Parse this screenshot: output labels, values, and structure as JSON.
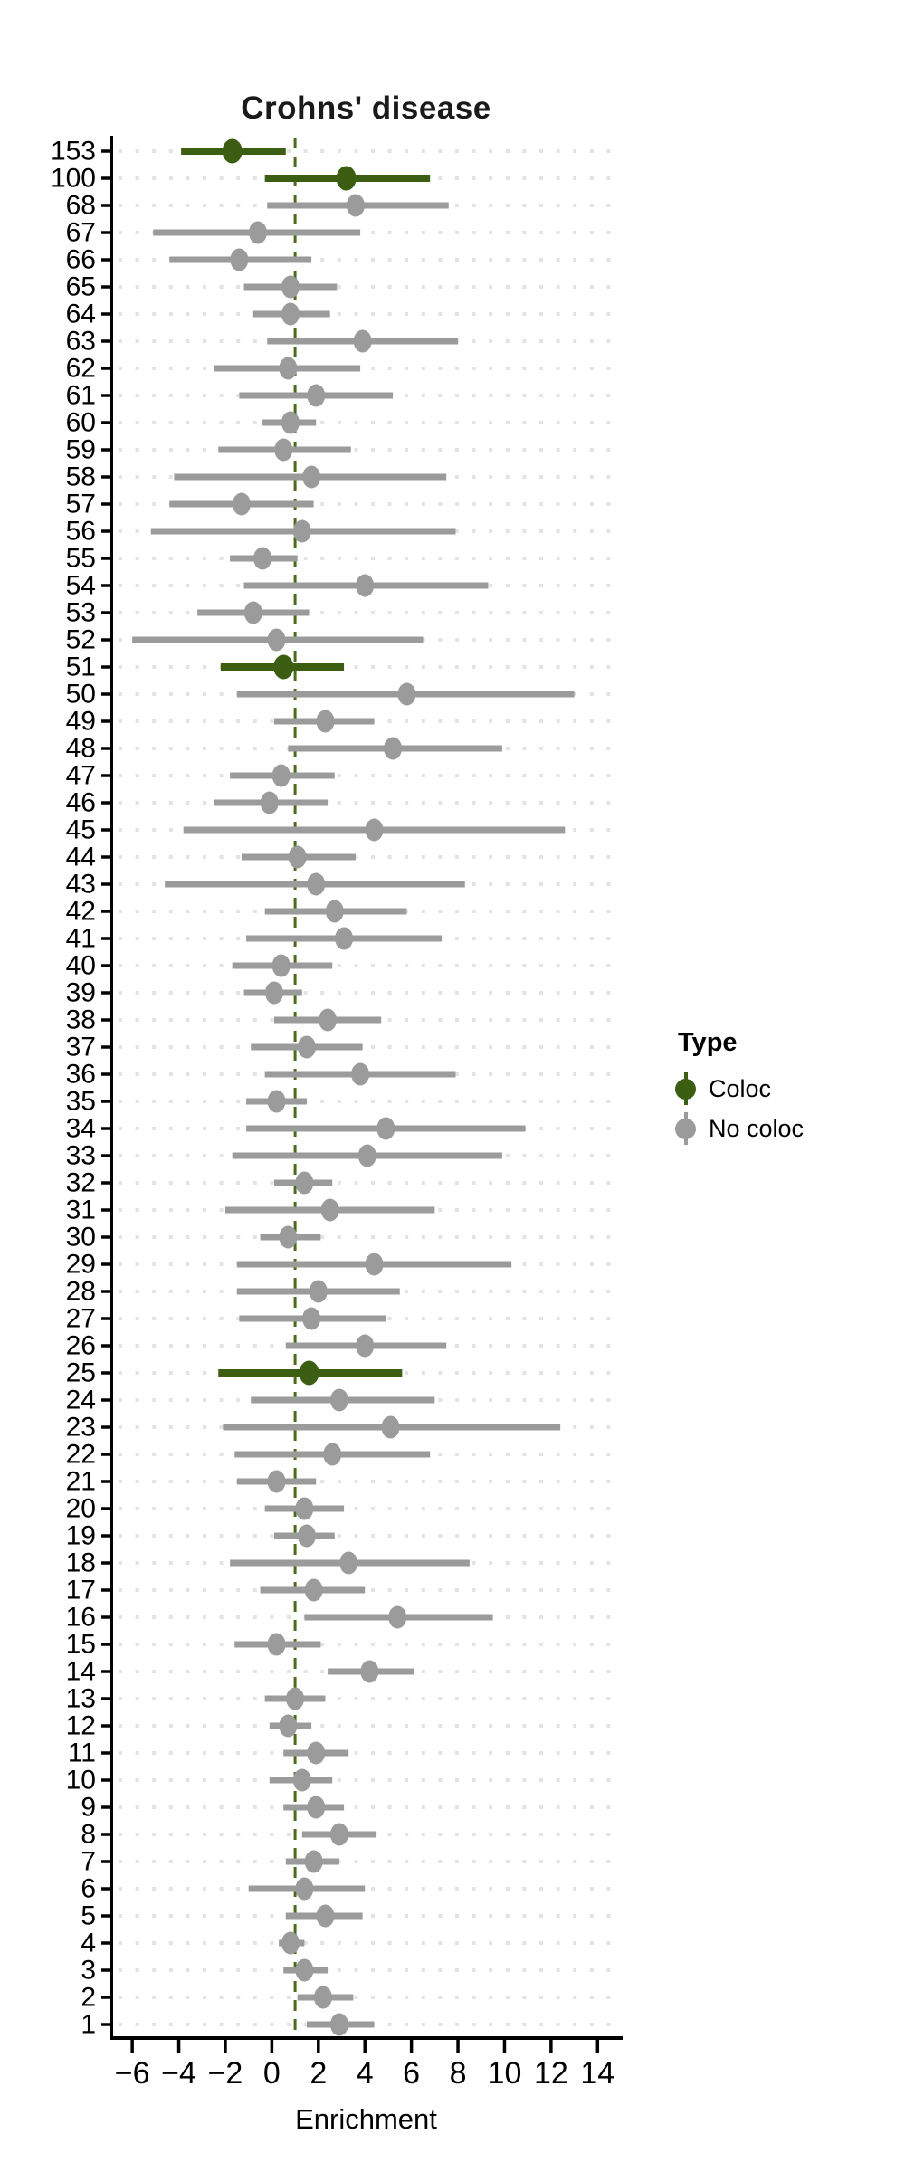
{
  "title": "Crohns' disease",
  "axes": {
    "xlabel": "Enrichment"
  },
  "legend": {
    "title": "Type",
    "items": [
      {
        "label": "Coloc",
        "color": "#3C5E13"
      },
      {
        "label": "No coloc",
        "color": "#9B9B9B"
      }
    ]
  },
  "colors": {
    "coloc": "#3C5E13",
    "no_coloc": "#9B9B9B",
    "refline": "#4A6C1B",
    "grid": "#E3E3E3",
    "axis": "#000000",
    "background": "#FFFFFF"
  },
  "chart_data": {
    "type": "scatter",
    "subtype": "horizontal-forest-pointrange",
    "title": "Crohns' disease",
    "xlabel": "Enrichment",
    "ylabel": "",
    "xlim": [
      -6.9,
      15.0
    ],
    "xticks": [
      -6,
      -4,
      -2,
      0,
      2,
      4,
      6,
      8,
      10,
      12,
      14
    ],
    "xtick_labels": [
      "−6",
      "−4",
      "−2",
      "0",
      "2",
      "4",
      "6",
      "8",
      "10",
      "12",
      "14"
    ],
    "refline_x": 1,
    "grid": "dotted-horizontal",
    "legend_position": "right",
    "rows": [
      {
        "label": "153",
        "est": -1.7,
        "lo": -3.9,
        "hi": 0.6,
        "type": "Coloc"
      },
      {
        "label": "100",
        "est": 3.2,
        "lo": -0.3,
        "hi": 6.8,
        "type": "Coloc"
      },
      {
        "label": "68",
        "est": 3.6,
        "lo": -0.2,
        "hi": 7.6,
        "type": "No coloc"
      },
      {
        "label": "67",
        "est": -0.6,
        "lo": -5.1,
        "hi": 3.8,
        "type": "No coloc"
      },
      {
        "label": "66",
        "est": -1.4,
        "lo": -4.4,
        "hi": 1.7,
        "type": "No coloc"
      },
      {
        "label": "65",
        "est": 0.8,
        "lo": -1.2,
        "hi": 2.8,
        "type": "No coloc"
      },
      {
        "label": "64",
        "est": 0.8,
        "lo": -0.8,
        "hi": 2.5,
        "type": "No coloc"
      },
      {
        "label": "63",
        "est": 3.9,
        "lo": -0.2,
        "hi": 8.0,
        "type": "No coloc"
      },
      {
        "label": "62",
        "est": 0.7,
        "lo": -2.5,
        "hi": 3.8,
        "type": "No coloc"
      },
      {
        "label": "61",
        "est": 1.9,
        "lo": -1.4,
        "hi": 5.2,
        "type": "No coloc"
      },
      {
        "label": "60",
        "est": 0.8,
        "lo": -0.4,
        "hi": 1.9,
        "type": "No coloc"
      },
      {
        "label": "59",
        "est": 0.5,
        "lo": -2.3,
        "hi": 3.4,
        "type": "No coloc"
      },
      {
        "label": "58",
        "est": 1.7,
        "lo": -4.2,
        "hi": 7.5,
        "type": "No coloc"
      },
      {
        "label": "57",
        "est": -1.3,
        "lo": -4.4,
        "hi": 1.8,
        "type": "No coloc"
      },
      {
        "label": "56",
        "est": 1.3,
        "lo": -5.2,
        "hi": 7.9,
        "type": "No coloc"
      },
      {
        "label": "55",
        "est": -0.4,
        "lo": -1.8,
        "hi": 1.1,
        "type": "No coloc"
      },
      {
        "label": "54",
        "est": 4.0,
        "lo": -1.2,
        "hi": 9.3,
        "type": "No coloc"
      },
      {
        "label": "53",
        "est": -0.8,
        "lo": -3.2,
        "hi": 1.6,
        "type": "No coloc"
      },
      {
        "label": "52",
        "est": 0.2,
        "lo": -6.0,
        "hi": 6.5,
        "type": "No coloc"
      },
      {
        "label": "51",
        "est": 0.5,
        "lo": -2.2,
        "hi": 3.1,
        "type": "Coloc"
      },
      {
        "label": "50",
        "est": 5.8,
        "lo": -1.5,
        "hi": 13.0,
        "type": "No coloc"
      },
      {
        "label": "49",
        "est": 2.3,
        "lo": 0.1,
        "hi": 4.4,
        "type": "No coloc"
      },
      {
        "label": "48",
        "est": 5.2,
        "lo": 0.7,
        "hi": 9.9,
        "type": "No coloc"
      },
      {
        "label": "47",
        "est": 0.4,
        "lo": -1.8,
        "hi": 2.7,
        "type": "No coloc"
      },
      {
        "label": "46",
        "est": -0.1,
        "lo": -2.5,
        "hi": 2.4,
        "type": "No coloc"
      },
      {
        "label": "45",
        "est": 4.4,
        "lo": -3.8,
        "hi": 12.6,
        "type": "No coloc"
      },
      {
        "label": "44",
        "est": 1.1,
        "lo": -1.3,
        "hi": 3.6,
        "type": "No coloc"
      },
      {
        "label": "43",
        "est": 1.9,
        "lo": -4.6,
        "hi": 8.3,
        "type": "No coloc"
      },
      {
        "label": "42",
        "est": 2.7,
        "lo": -0.3,
        "hi": 5.8,
        "type": "No coloc"
      },
      {
        "label": "41",
        "est": 3.1,
        "lo": -1.1,
        "hi": 7.3,
        "type": "No coloc"
      },
      {
        "label": "40",
        "est": 0.4,
        "lo": -1.7,
        "hi": 2.6,
        "type": "No coloc"
      },
      {
        "label": "39",
        "est": 0.1,
        "lo": -1.2,
        "hi": 1.3,
        "type": "No coloc"
      },
      {
        "label": "38",
        "est": 2.4,
        "lo": 0.1,
        "hi": 4.7,
        "type": "No coloc"
      },
      {
        "label": "37",
        "est": 1.5,
        "lo": -0.9,
        "hi": 3.9,
        "type": "No coloc"
      },
      {
        "label": "36",
        "est": 3.8,
        "lo": -0.3,
        "hi": 7.9,
        "type": "No coloc"
      },
      {
        "label": "35",
        "est": 0.2,
        "lo": -1.1,
        "hi": 1.5,
        "type": "No coloc"
      },
      {
        "label": "34",
        "est": 4.9,
        "lo": -1.1,
        "hi": 10.9,
        "type": "No coloc"
      },
      {
        "label": "33",
        "est": 4.1,
        "lo": -1.7,
        "hi": 9.9,
        "type": "No coloc"
      },
      {
        "label": "32",
        "est": 1.4,
        "lo": 0.1,
        "hi": 2.6,
        "type": "No coloc"
      },
      {
        "label": "31",
        "est": 2.5,
        "lo": -2.0,
        "hi": 7.0,
        "type": "No coloc"
      },
      {
        "label": "30",
        "est": 0.7,
        "lo": -0.5,
        "hi": 2.1,
        "type": "No coloc"
      },
      {
        "label": "29",
        "est": 4.4,
        "lo": -1.5,
        "hi": 10.3,
        "type": "No coloc"
      },
      {
        "label": "28",
        "est": 2.0,
        "lo": -1.5,
        "hi": 5.5,
        "type": "No coloc"
      },
      {
        "label": "27",
        "est": 1.7,
        "lo": -1.4,
        "hi": 4.9,
        "type": "No coloc"
      },
      {
        "label": "26",
        "est": 4.0,
        "lo": 0.6,
        "hi": 7.5,
        "type": "No coloc"
      },
      {
        "label": "25",
        "est": 1.6,
        "lo": -2.3,
        "hi": 5.6,
        "type": "Coloc"
      },
      {
        "label": "24",
        "est": 2.9,
        "lo": -0.9,
        "hi": 7.0,
        "type": "No coloc"
      },
      {
        "label": "23",
        "est": 5.1,
        "lo": -2.1,
        "hi": 12.4,
        "type": "No coloc"
      },
      {
        "label": "22",
        "est": 2.6,
        "lo": -1.6,
        "hi": 6.8,
        "type": "No coloc"
      },
      {
        "label": "21",
        "est": 0.2,
        "lo": -1.5,
        "hi": 1.9,
        "type": "No coloc"
      },
      {
        "label": "20",
        "est": 1.4,
        "lo": -0.3,
        "hi": 3.1,
        "type": "No coloc"
      },
      {
        "label": "19",
        "est": 1.5,
        "lo": 0.1,
        "hi": 2.7,
        "type": "No coloc"
      },
      {
        "label": "18",
        "est": 3.3,
        "lo": -1.8,
        "hi": 8.5,
        "type": "No coloc"
      },
      {
        "label": "17",
        "est": 1.8,
        "lo": -0.5,
        "hi": 4.0,
        "type": "No coloc"
      },
      {
        "label": "16",
        "est": 5.4,
        "lo": 1.4,
        "hi": 9.5,
        "type": "No coloc"
      },
      {
        "label": "15",
        "est": 0.2,
        "lo": -1.6,
        "hi": 2.1,
        "type": "No coloc"
      },
      {
        "label": "14",
        "est": 4.2,
        "lo": 2.4,
        "hi": 6.1,
        "type": "No coloc"
      },
      {
        "label": "13",
        "est": 1.0,
        "lo": -0.3,
        "hi": 2.3,
        "type": "No coloc"
      },
      {
        "label": "12",
        "est": 0.7,
        "lo": -0.1,
        "hi": 1.7,
        "type": "No coloc"
      },
      {
        "label": "11",
        "est": 1.9,
        "lo": 0.5,
        "hi": 3.3,
        "type": "No coloc"
      },
      {
        "label": "10",
        "est": 1.3,
        "lo": -0.1,
        "hi": 2.6,
        "type": "No coloc"
      },
      {
        "label": "9",
        "est": 1.9,
        "lo": 0.5,
        "hi": 3.1,
        "type": "No coloc"
      },
      {
        "label": "8",
        "est": 2.9,
        "lo": 1.3,
        "hi": 4.5,
        "type": "No coloc"
      },
      {
        "label": "7",
        "est": 1.8,
        "lo": 0.6,
        "hi": 2.9,
        "type": "No coloc"
      },
      {
        "label": "6",
        "est": 1.4,
        "lo": -1.0,
        "hi": 4.0,
        "type": "No coloc"
      },
      {
        "label": "5",
        "est": 2.3,
        "lo": 0.6,
        "hi": 3.9,
        "type": "No coloc"
      },
      {
        "label": "4",
        "est": 0.8,
        "lo": 0.3,
        "hi": 1.4,
        "type": "No coloc"
      },
      {
        "label": "3",
        "est": 1.4,
        "lo": 0.5,
        "hi": 2.4,
        "type": "No coloc"
      },
      {
        "label": "2",
        "est": 2.2,
        "lo": 1.1,
        "hi": 3.5,
        "type": "No coloc"
      },
      {
        "label": "1",
        "est": 2.9,
        "lo": 1.5,
        "hi": 4.4,
        "type": "No coloc"
      }
    ]
  }
}
